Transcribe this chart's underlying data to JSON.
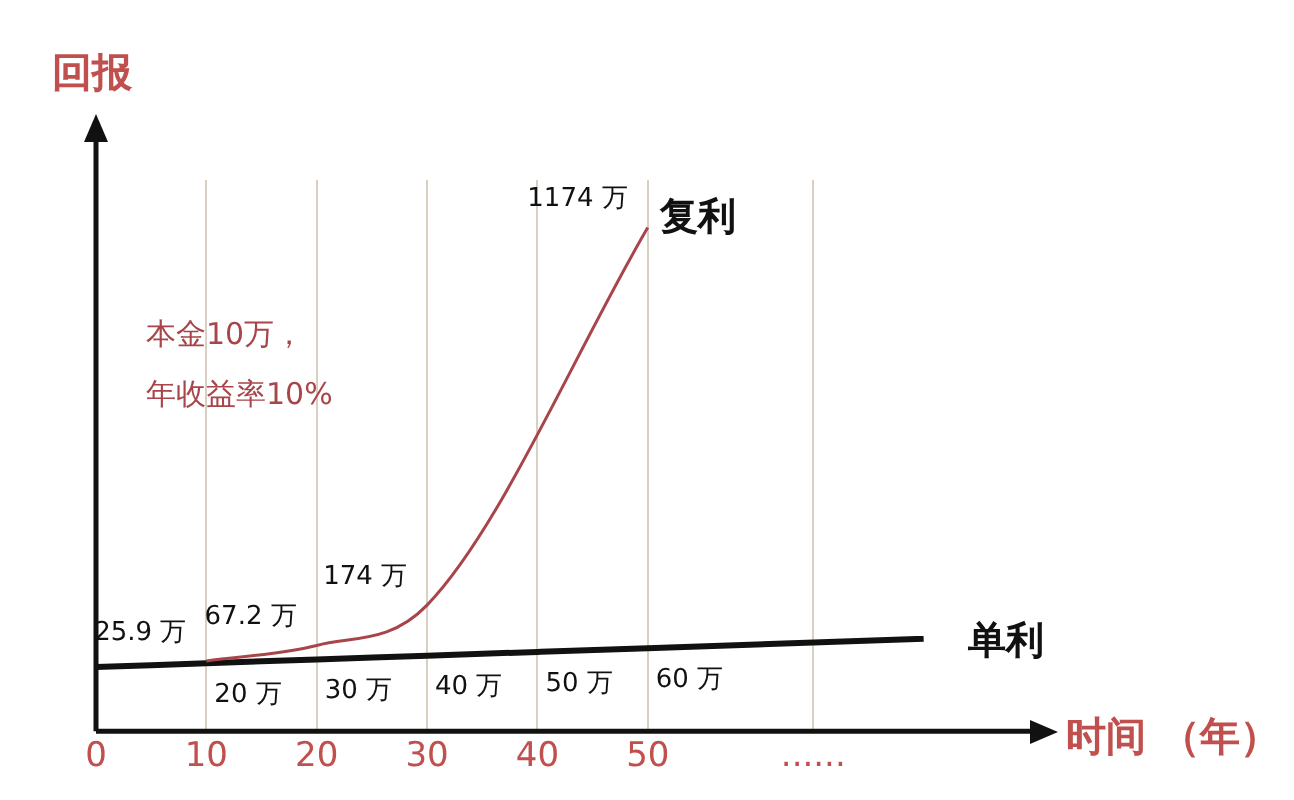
{
  "chart_data": {
    "type": "line",
    "ylabel": "回报",
    "xlabel": "时间 （年）",
    "xlim": [
      0,
      85
    ],
    "xticks": [
      0,
      10,
      20,
      30,
      40,
      50,
      {
        "value": 65,
        "label": "......"
      }
    ],
    "ylim": [
      -160,
      1300
    ],
    "tick_labels": "x",
    "grid": "x",
    "legend": false,
    "marker": "none",
    "annotations": [
      "本金10万，",
      "年收益率10%"
    ],
    "series": [
      {
        "name": "复利",
        "color": "#a8454a",
        "x": [
          10,
          20,
          30,
          50
        ],
        "values": [
          25.9,
          67.2,
          174,
          1174
        ],
        "value_labels": [
          "25.9 万",
          "67.2 万",
          "174 万",
          "1174 万"
        ]
      },
      {
        "name": "单利",
        "color": "#111111",
        "x": [
          0,
          10,
          20,
          30,
          40,
          50,
          75
        ],
        "values": [
          10,
          20,
          30,
          40,
          50,
          60,
          85
        ],
        "value_labels": [
          null,
          "20 万",
          "30 万",
          "40 万",
          "50 万",
          "60 万",
          null
        ]
      }
    ]
  }
}
